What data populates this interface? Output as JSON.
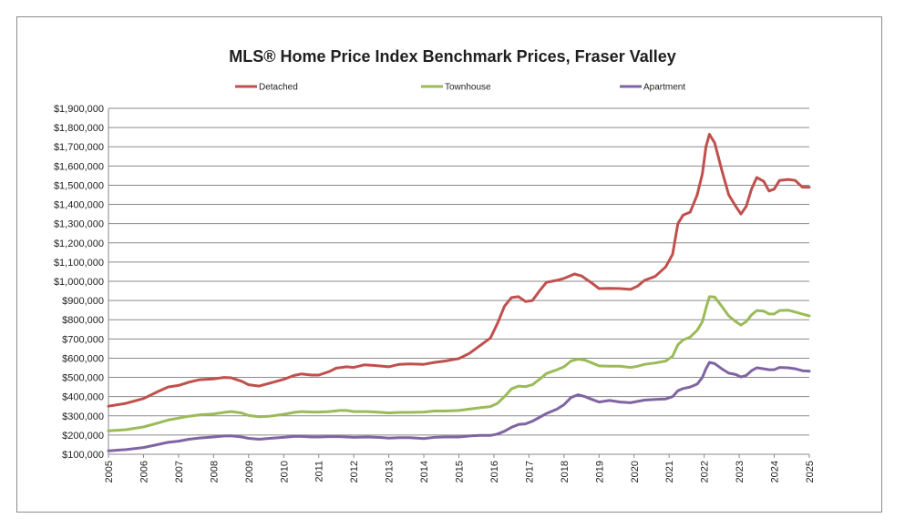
{
  "chart_data": {
    "type": "line",
    "title": "MLS® Home Price Index Benchmark Prices, Fraser Valley",
    "xlabel": "",
    "ylabel": "",
    "ylim": [
      100000,
      1900000
    ],
    "xlim": [
      2005,
      2025
    ],
    "y_ticks": [
      "$100,000",
      "$200,000",
      "$300,000",
      "$400,000",
      "$500,000",
      "$600,000",
      "$700,000",
      "$800,000",
      "$900,000",
      "$1,000,000",
      "$1,100,000",
      "$1,200,000",
      "$1,300,000",
      "$1,400,000",
      "$1,500,000",
      "$1,600,000",
      "$1,700,000",
      "$1,800,000",
      "$1,900,000"
    ],
    "x_ticks": [
      "2005",
      "2006",
      "2007",
      "2008",
      "2009",
      "2010",
      "2011",
      "2012",
      "2013",
      "2014",
      "2015",
      "2016",
      "2017",
      "2018",
      "2019",
      "2020",
      "2021",
      "2022",
      "2023",
      "2024",
      "2025"
    ],
    "grid": "horizontal",
    "legend_position": "top",
    "series": [
      {
        "name": "Detached",
        "color": "#c0504d",
        "points": [
          [
            2005.0,
            350000
          ],
          [
            2005.5,
            365000
          ],
          [
            2006.0,
            390000
          ],
          [
            2006.4,
            425000
          ],
          [
            2006.7,
            450000
          ],
          [
            2007.0,
            458000
          ],
          [
            2007.3,
            475000
          ],
          [
            2007.6,
            488000
          ],
          [
            2008.0,
            492000
          ],
          [
            2008.3,
            500000
          ],
          [
            2008.5,
            498000
          ],
          [
            2008.8,
            480000
          ],
          [
            2009.0,
            462000
          ],
          [
            2009.3,
            455000
          ],
          [
            2009.6,
            470000
          ],
          [
            2010.0,
            490000
          ],
          [
            2010.3,
            510000
          ],
          [
            2010.5,
            518000
          ],
          [
            2010.8,
            512000
          ],
          [
            2011.0,
            512000
          ],
          [
            2011.3,
            530000
          ],
          [
            2011.5,
            548000
          ],
          [
            2011.8,
            555000
          ],
          [
            2012.0,
            552000
          ],
          [
            2012.3,
            565000
          ],
          [
            2012.6,
            562000
          ],
          [
            2013.0,
            555000
          ],
          [
            2013.3,
            568000
          ],
          [
            2013.6,
            570000
          ],
          [
            2014.0,
            568000
          ],
          [
            2014.3,
            578000
          ],
          [
            2014.6,
            585000
          ],
          [
            2015.0,
            598000
          ],
          [
            2015.3,
            625000
          ],
          [
            2015.6,
            665000
          ],
          [
            2015.9,
            705000
          ],
          [
            2016.1,
            780000
          ],
          [
            2016.3,
            870000
          ],
          [
            2016.5,
            915000
          ],
          [
            2016.7,
            920000
          ],
          [
            2016.9,
            895000
          ],
          [
            2017.1,
            900000
          ],
          [
            2017.3,
            950000
          ],
          [
            2017.5,
            995000
          ],
          [
            2017.8,
            1005000
          ],
          [
            2018.0,
            1015000
          ],
          [
            2018.3,
            1038000
          ],
          [
            2018.5,
            1028000
          ],
          [
            2018.8,
            990000
          ],
          [
            2019.0,
            962000
          ],
          [
            2019.3,
            963000
          ],
          [
            2019.6,
            962000
          ],
          [
            2019.9,
            958000
          ],
          [
            2020.1,
            975000
          ],
          [
            2020.3,
            1005000
          ],
          [
            2020.6,
            1025000
          ],
          [
            2020.9,
            1075000
          ],
          [
            2021.1,
            1140000
          ],
          [
            2021.25,
            1300000
          ],
          [
            2021.4,
            1345000
          ],
          [
            2021.6,
            1360000
          ],
          [
            2021.8,
            1450000
          ],
          [
            2021.95,
            1560000
          ],
          [
            2022.05,
            1700000
          ],
          [
            2022.15,
            1765000
          ],
          [
            2022.3,
            1720000
          ],
          [
            2022.5,
            1580000
          ],
          [
            2022.7,
            1450000
          ],
          [
            2022.9,
            1390000
          ],
          [
            2023.05,
            1350000
          ],
          [
            2023.2,
            1390000
          ],
          [
            2023.35,
            1480000
          ],
          [
            2023.5,
            1540000
          ],
          [
            2023.7,
            1520000
          ],
          [
            2023.85,
            1470000
          ],
          [
            2024.0,
            1480000
          ],
          [
            2024.15,
            1525000
          ],
          [
            2024.4,
            1530000
          ],
          [
            2024.6,
            1525000
          ],
          [
            2024.8,
            1490000
          ],
          [
            2025.0,
            1490000
          ]
        ]
      },
      {
        "name": "Townhouse",
        "color": "#9bbb59",
        "points": [
          [
            2005.0,
            222000
          ],
          [
            2005.5,
            228000
          ],
          [
            2006.0,
            242000
          ],
          [
            2006.4,
            262000
          ],
          [
            2006.7,
            278000
          ],
          [
            2007.0,
            288000
          ],
          [
            2007.3,
            298000
          ],
          [
            2007.6,
            305000
          ],
          [
            2008.0,
            310000
          ],
          [
            2008.3,
            318000
          ],
          [
            2008.5,
            322000
          ],
          [
            2008.8,
            315000
          ],
          [
            2009.0,
            302000
          ],
          [
            2009.3,
            295000
          ],
          [
            2009.6,
            298000
          ],
          [
            2010.0,
            308000
          ],
          [
            2010.3,
            318000
          ],
          [
            2010.5,
            322000
          ],
          [
            2010.8,
            320000
          ],
          [
            2011.0,
            320000
          ],
          [
            2011.3,
            322000
          ],
          [
            2011.6,
            328000
          ],
          [
            2011.8,
            328000
          ],
          [
            2012.0,
            322000
          ],
          [
            2012.4,
            322000
          ],
          [
            2012.8,
            318000
          ],
          [
            2013.0,
            315000
          ],
          [
            2013.3,
            318000
          ],
          [
            2013.6,
            318000
          ],
          [
            2014.0,
            320000
          ],
          [
            2014.3,
            325000
          ],
          [
            2014.6,
            325000
          ],
          [
            2015.0,
            328000
          ],
          [
            2015.3,
            335000
          ],
          [
            2015.6,
            342000
          ],
          [
            2015.9,
            348000
          ],
          [
            2016.1,
            365000
          ],
          [
            2016.3,
            400000
          ],
          [
            2016.5,
            440000
          ],
          [
            2016.7,
            455000
          ],
          [
            2016.9,
            452000
          ],
          [
            2017.1,
            462000
          ],
          [
            2017.3,
            490000
          ],
          [
            2017.5,
            520000
          ],
          [
            2017.8,
            540000
          ],
          [
            2018.0,
            555000
          ],
          [
            2018.2,
            585000
          ],
          [
            2018.4,
            595000
          ],
          [
            2018.6,
            590000
          ],
          [
            2018.8,
            575000
          ],
          [
            2019.0,
            560000
          ],
          [
            2019.3,
            558000
          ],
          [
            2019.6,
            558000
          ],
          [
            2019.9,
            552000
          ],
          [
            2020.1,
            558000
          ],
          [
            2020.3,
            568000
          ],
          [
            2020.6,
            575000
          ],
          [
            2020.9,
            585000
          ],
          [
            2021.1,
            610000
          ],
          [
            2021.25,
            670000
          ],
          [
            2021.4,
            695000
          ],
          [
            2021.6,
            710000
          ],
          [
            2021.8,
            745000
          ],
          [
            2021.95,
            790000
          ],
          [
            2022.05,
            860000
          ],
          [
            2022.15,
            920000
          ],
          [
            2022.3,
            918000
          ],
          [
            2022.5,
            870000
          ],
          [
            2022.7,
            820000
          ],
          [
            2022.9,
            790000
          ],
          [
            2023.05,
            772000
          ],
          [
            2023.2,
            790000
          ],
          [
            2023.35,
            825000
          ],
          [
            2023.5,
            848000
          ],
          [
            2023.7,
            845000
          ],
          [
            2023.85,
            830000
          ],
          [
            2024.0,
            830000
          ],
          [
            2024.15,
            848000
          ],
          [
            2024.4,
            850000
          ],
          [
            2024.6,
            840000
          ],
          [
            2024.8,
            830000
          ],
          [
            2025.0,
            820000
          ]
        ]
      },
      {
        "name": "Apartment",
        "color": "#8064a2",
        "points": [
          [
            2005.0,
            118000
          ],
          [
            2005.5,
            124000
          ],
          [
            2006.0,
            135000
          ],
          [
            2006.4,
            150000
          ],
          [
            2006.7,
            162000
          ],
          [
            2007.0,
            168000
          ],
          [
            2007.3,
            178000
          ],
          [
            2007.6,
            185000
          ],
          [
            2008.0,
            190000
          ],
          [
            2008.3,
            195000
          ],
          [
            2008.5,
            196000
          ],
          [
            2008.8,
            190000
          ],
          [
            2009.0,
            183000
          ],
          [
            2009.3,
            178000
          ],
          [
            2009.6,
            183000
          ],
          [
            2010.0,
            188000
          ],
          [
            2010.3,
            193000
          ],
          [
            2010.5,
            193000
          ],
          [
            2010.8,
            190000
          ],
          [
            2011.0,
            190000
          ],
          [
            2011.3,
            192000
          ],
          [
            2011.6,
            192000
          ],
          [
            2012.0,
            188000
          ],
          [
            2012.4,
            190000
          ],
          [
            2012.8,
            187000
          ],
          [
            2013.0,
            184000
          ],
          [
            2013.3,
            186000
          ],
          [
            2013.6,
            186000
          ],
          [
            2014.0,
            182000
          ],
          [
            2014.3,
            188000
          ],
          [
            2014.6,
            190000
          ],
          [
            2015.0,
            190000
          ],
          [
            2015.3,
            195000
          ],
          [
            2015.6,
            198000
          ],
          [
            2015.9,
            198000
          ],
          [
            2016.1,
            205000
          ],
          [
            2016.3,
            220000
          ],
          [
            2016.5,
            240000
          ],
          [
            2016.7,
            255000
          ],
          [
            2016.9,
            258000
          ],
          [
            2017.1,
            272000
          ],
          [
            2017.3,
            292000
          ],
          [
            2017.5,
            312000
          ],
          [
            2017.8,
            335000
          ],
          [
            2018.0,
            358000
          ],
          [
            2018.2,
            395000
          ],
          [
            2018.4,
            410000
          ],
          [
            2018.6,
            400000
          ],
          [
            2018.8,
            385000
          ],
          [
            2019.0,
            372000
          ],
          [
            2019.3,
            380000
          ],
          [
            2019.6,
            372000
          ],
          [
            2019.9,
            368000
          ],
          [
            2020.1,
            375000
          ],
          [
            2020.3,
            382000
          ],
          [
            2020.6,
            385000
          ],
          [
            2020.9,
            388000
          ],
          [
            2021.1,
            400000
          ],
          [
            2021.25,
            430000
          ],
          [
            2021.4,
            442000
          ],
          [
            2021.6,
            450000
          ],
          [
            2021.8,
            465000
          ],
          [
            2021.95,
            500000
          ],
          [
            2022.05,
            545000
          ],
          [
            2022.15,
            578000
          ],
          [
            2022.3,
            572000
          ],
          [
            2022.5,
            545000
          ],
          [
            2022.7,
            522000
          ],
          [
            2022.9,
            515000
          ],
          [
            2023.05,
            502000
          ],
          [
            2023.2,
            510000
          ],
          [
            2023.35,
            535000
          ],
          [
            2023.5,
            550000
          ],
          [
            2023.7,
            545000
          ],
          [
            2023.85,
            540000
          ],
          [
            2024.0,
            540000
          ],
          [
            2024.15,
            552000
          ],
          [
            2024.4,
            550000
          ],
          [
            2024.6,
            545000
          ],
          [
            2024.8,
            535000
          ],
          [
            2025.0,
            532000
          ]
        ]
      }
    ]
  }
}
